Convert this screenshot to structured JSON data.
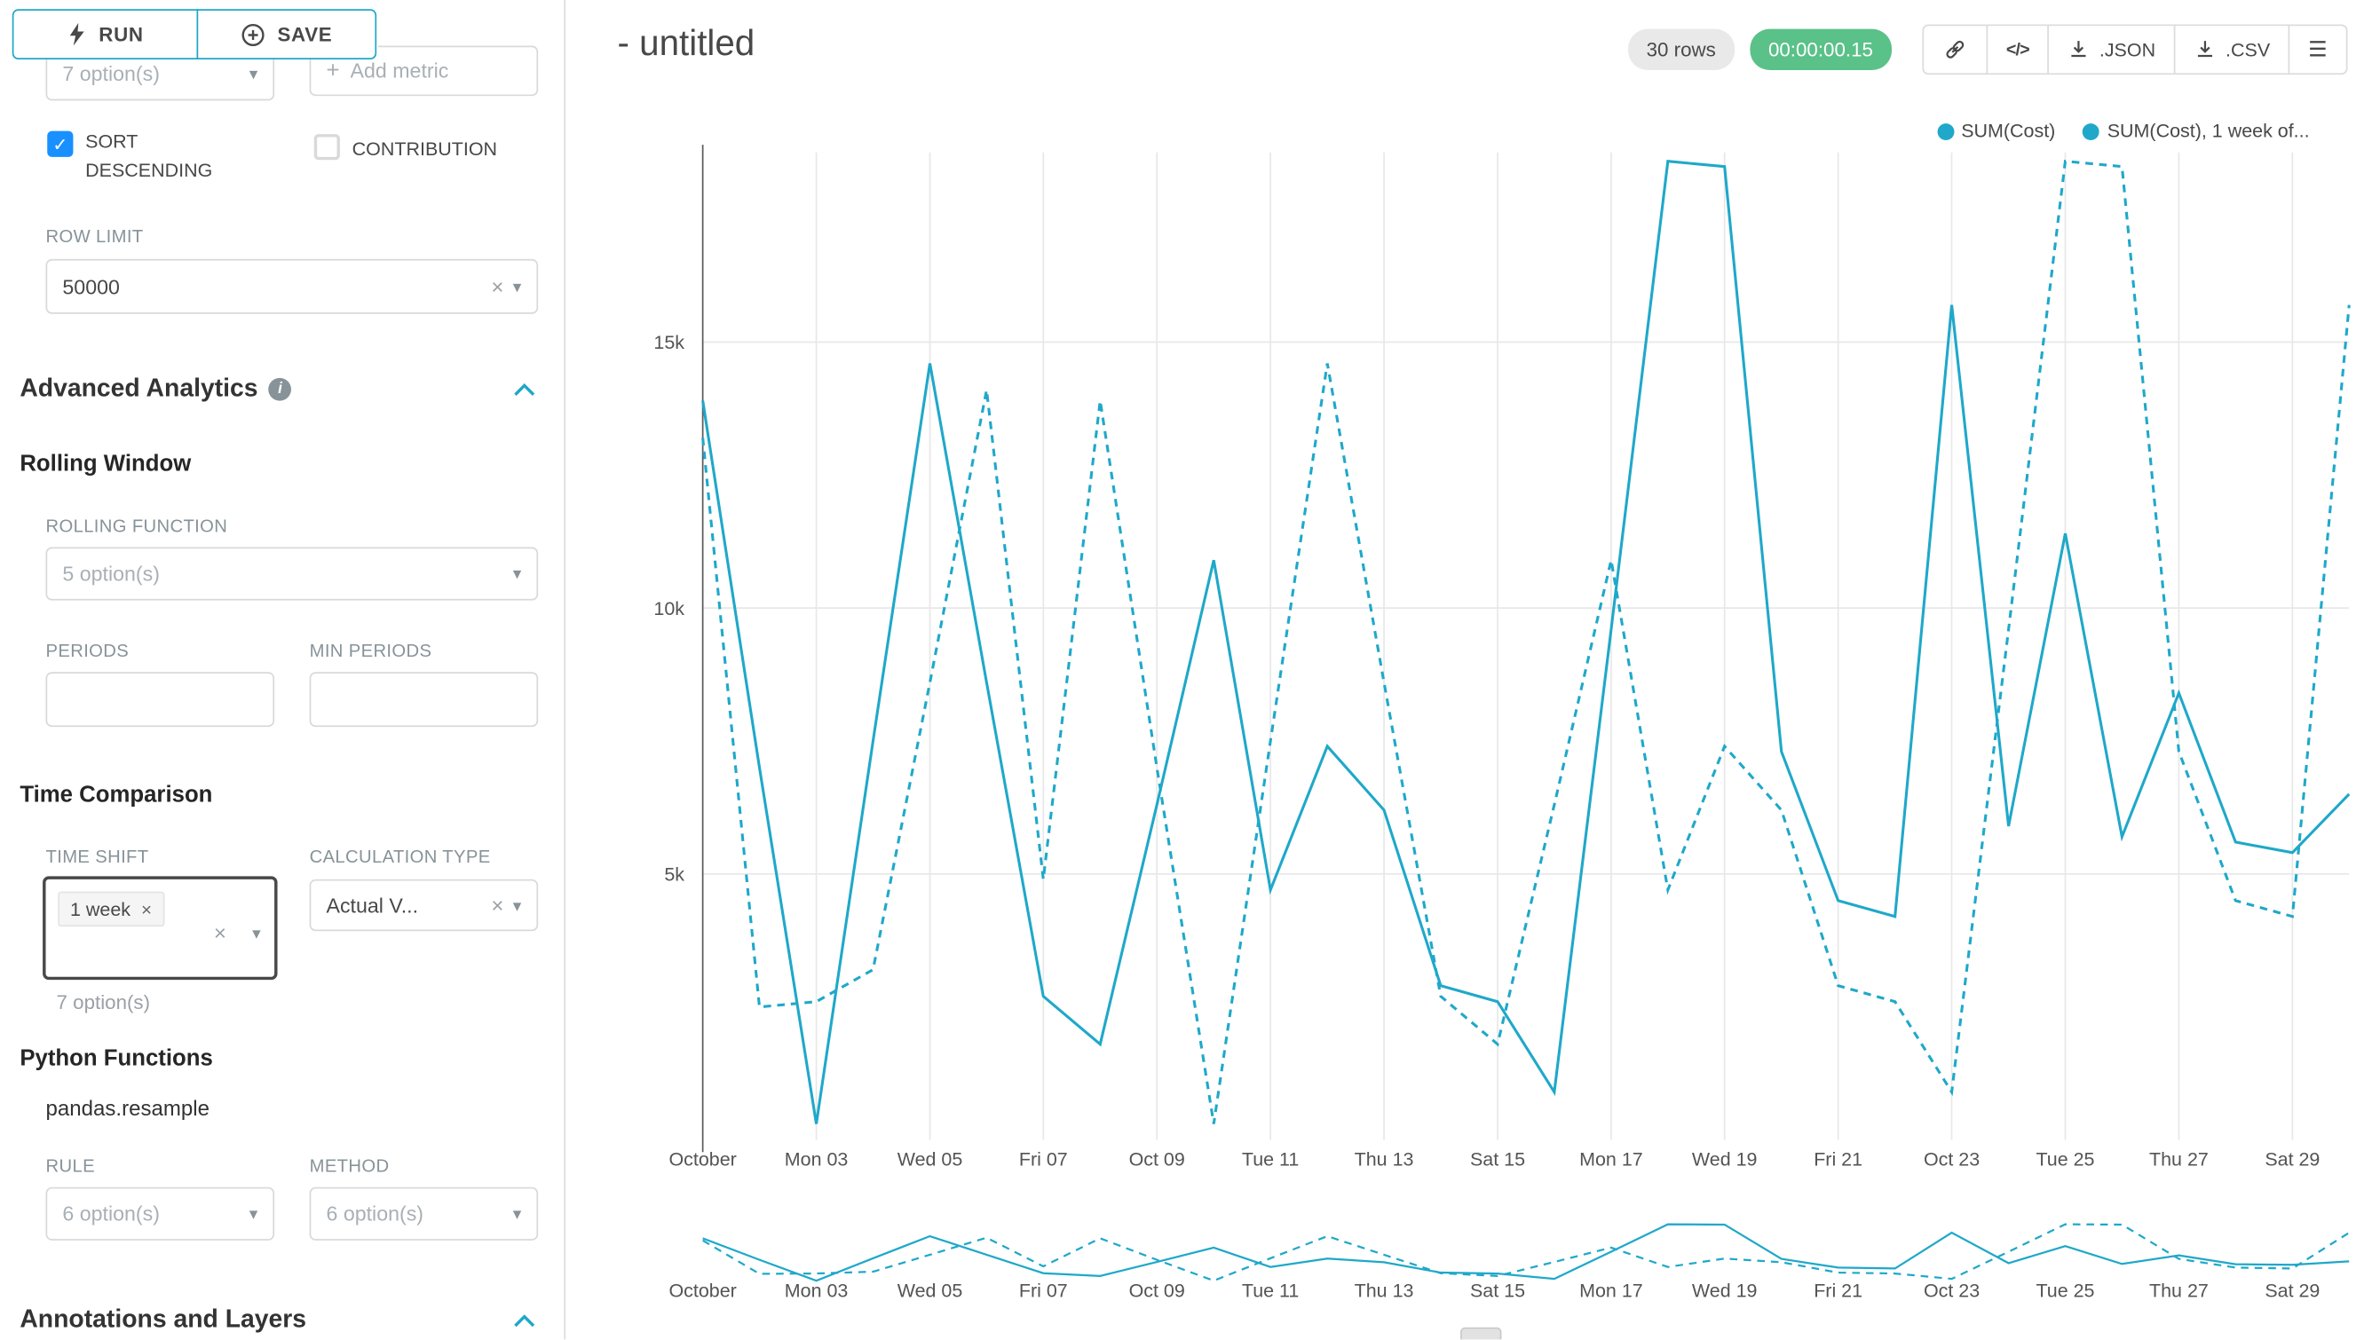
{
  "colors": {
    "accent": "#20a7c9",
    "success": "#5ac189",
    "checkbox": "#1890ff"
  },
  "icons": {
    "chevron_down": "▾",
    "clear": "×",
    "check": "✓",
    "plus": "+",
    "info": "i",
    "menu": "☰",
    "code": "</>"
  },
  "sidebar": {
    "run_label": "RUN",
    "save_label": "SAVE",
    "metrics_placeholder": "7 option(s)",
    "add_metric_label": "Add metric",
    "sort_descending_label": "SORT DESCENDING",
    "contribution_label": "CONTRIBUTION",
    "row_limit_label": "ROW LIMIT",
    "row_limit_value": "50000",
    "advanced_analytics_title": "Advanced Analytics",
    "rolling_window_title": "Rolling Window",
    "rolling_function_label": "ROLLING FUNCTION",
    "rolling_function_placeholder": "5 option(s)",
    "periods_label": "PERIODS",
    "min_periods_label": "MIN PERIODS",
    "time_comparison_title": "Time Comparison",
    "time_shift_label": "TIME SHIFT",
    "time_shift_tag": "1 week",
    "time_shift_hint": "7 option(s)",
    "calculation_type_label": "CALCULATION TYPE",
    "calculation_type_value": "Actual V...",
    "python_functions_title": "Python Functions",
    "python_functions_subtitle": "pandas.resample",
    "rule_label": "RULE",
    "rule_placeholder": "6 option(s)",
    "method_label": "METHOD",
    "method_placeholder": "6 option(s)",
    "annotations_title": "Annotations and Layers"
  },
  "header": {
    "title": "- untitled",
    "rows_badge": "30 rows",
    "timer_badge": "00:00:00.15",
    "export_json_label": ".JSON",
    "export_csv_label": ".CSV"
  },
  "chart_data": {
    "type": "line",
    "series_color": "#1fa8c9",
    "grid": true,
    "legend_position": "top-right",
    "x_days": [
      1,
      2,
      3,
      4,
      5,
      6,
      7,
      8,
      9,
      10,
      11,
      12,
      13,
      14,
      15,
      16,
      17,
      18,
      19,
      20,
      21,
      22,
      23,
      24,
      25,
      26,
      27,
      28,
      29,
      30
    ],
    "x_tick_labels": [
      "October",
      "Mon 03",
      "Wed 05",
      "Fri 07",
      "Oct 09",
      "Tue 11",
      "Thu 13",
      "Sat 15",
      "Mon 17",
      "Wed 19",
      "Fri 21",
      "Oct 23",
      "Tue 25",
      "Thu 27",
      "Sat 29"
    ],
    "yticks": [
      5000,
      10000,
      15000
    ],
    "ytick_labels": [
      "5k",
      "10k",
      "15k"
    ],
    "ylim": [
      0,
      18600
    ],
    "series": [
      {
        "name": "SUM(Cost)",
        "line_style": "solid",
        "values": [
          13900,
          7000,
          300,
          7500,
          14600,
          8600,
          2700,
          1800,
          6300,
          10900,
          4700,
          7400,
          6200,
          2900,
          2600,
          900,
          9600,
          18400,
          18300,
          7300,
          4500,
          4200,
          15700,
          5900,
          11400,
          5700,
          8400,
          5600,
          5400,
          6500
        ]
      },
      {
        "name": "SUM(Cost), 1 week of...",
        "line_style": "dashed",
        "values": [
          13200,
          2500,
          2600,
          3200,
          8600,
          14100,
          4900,
          13900,
          7000,
          300,
          7500,
          14600,
          8600,
          2700,
          1800,
          6300,
          10900,
          4700,
          7400,
          6200,
          2900,
          2600,
          900,
          9600,
          18400,
          18300,
          7300,
          4500,
          4200,
          15700
        ]
      }
    ]
  }
}
